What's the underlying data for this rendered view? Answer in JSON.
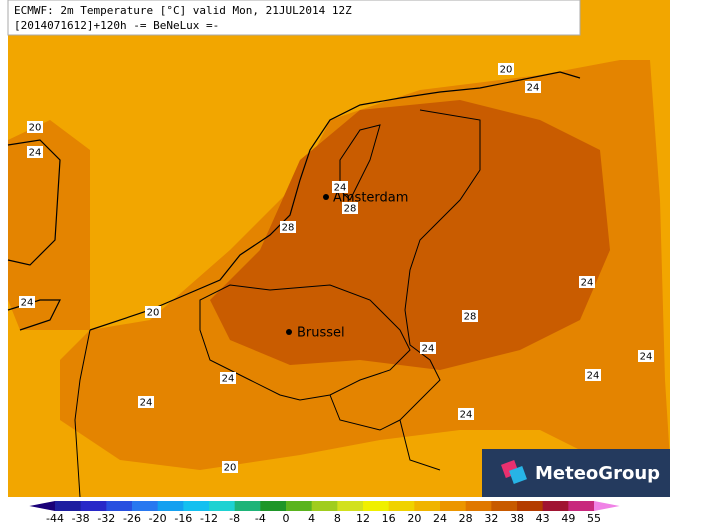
{
  "header": {
    "line1": "ECMWF: 2m Temperature [°C] valid Mon, 21JUL2014 12Z",
    "line2": "[2014071612]+120h -= BeNeLux =-"
  },
  "cities": [
    "Amsterdam",
    "Brussel"
  ],
  "contour_labels": [
    20,
    24,
    20,
    24,
    24,
    28,
    28,
    24,
    20,
    24,
    28,
    24,
    24,
    24,
    24,
    24,
    24,
    20
  ],
  "legend": {
    "ticks": [
      -44,
      -38,
      -32,
      -26,
      -20,
      -16,
      -12,
      -8,
      -4,
      0,
      4,
      8,
      12,
      16,
      20,
      24,
      28,
      32,
      38,
      43,
      49,
      55
    ],
    "colors": [
      "#1a0078",
      "#1e1ea0",
      "#2828c8",
      "#2850e0",
      "#2878f0",
      "#14a0f0",
      "#14c0f0",
      "#1ed2d2",
      "#1eb478",
      "#1e9628",
      "#5ab41e",
      "#a0cd1e",
      "#d2e11e",
      "#f0f000",
      "#f0d200",
      "#f0b400",
      "#ec9600",
      "#e07800",
      "#c85a00",
      "#b43c00",
      "#a01432",
      "#c8287d",
      "#e650b4",
      "#f082e6"
    ]
  },
  "logo": "MeteoGroup"
}
